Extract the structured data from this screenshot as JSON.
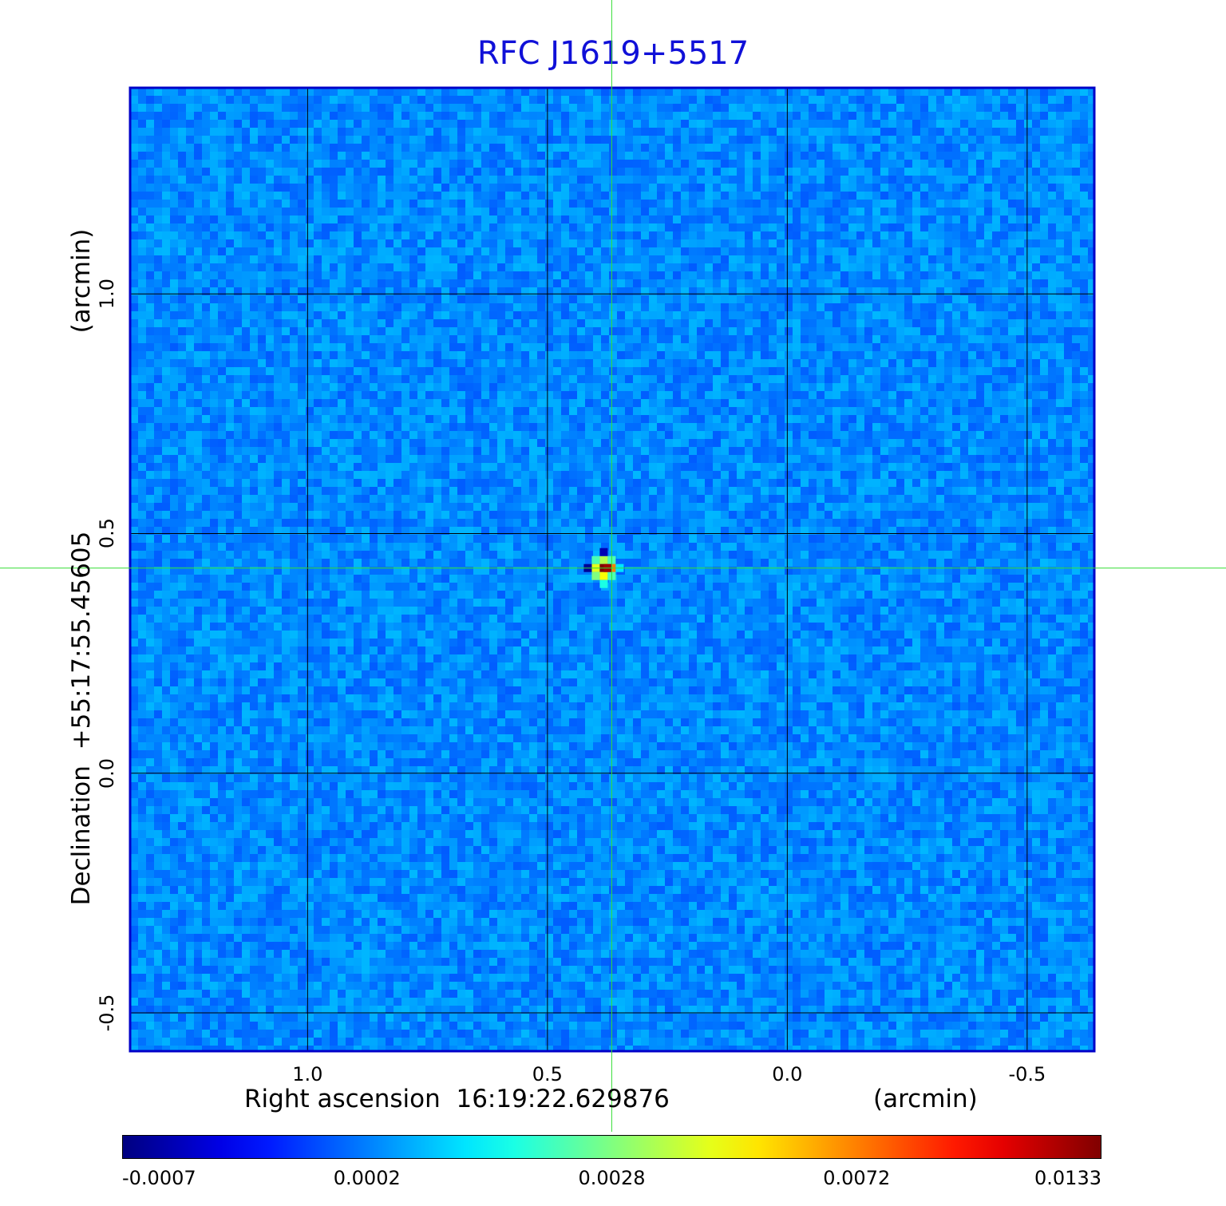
{
  "chart_data": {
    "type": "heatmap",
    "title": "RFC J1619+5517",
    "xlabel": "Right ascension  16:19:22.629876",
    "xunit": "(arcmin)",
    "ylabel": "Declination  +55:17:55.45605",
    "yunit": "(arcmin)",
    "x_range": [
      1.37,
      -0.64
    ],
    "y_range": [
      -0.58,
      1.43
    ],
    "x_ticks": [
      {
        "value": 1.0,
        "label": "1.0"
      },
      {
        "value": 0.5,
        "label": "0.5"
      },
      {
        "value": 0.0,
        "label": "0.0"
      },
      {
        "value": -0.5,
        "label": "-0.5"
      }
    ],
    "y_ticks": [
      {
        "value": 1.0,
        "label": "1.0"
      },
      {
        "value": 0.5,
        "label": "0.5"
      },
      {
        "value": 0.0,
        "label": "0.0"
      },
      {
        "value": -0.5,
        "label": "-0.5"
      }
    ],
    "grid": true,
    "crosshair": {
      "x": 0.366,
      "y": 0.428,
      "color": "#33dd33"
    },
    "source_peak": {
      "x": 0.366,
      "y": 0.428,
      "value": 0.0133
    },
    "colormap": "jet",
    "colorbar_ticks": [
      {
        "label": "-0.0007",
        "fraction": 0.0
      },
      {
        "label": "0.0002",
        "fraction": 0.25
      },
      {
        "label": "0.0028",
        "fraction": 0.5
      },
      {
        "label": "0.0072",
        "fraction": 0.75
      },
      {
        "label": "0.0133",
        "fraction": 1.0
      }
    ],
    "colors": {
      "frame": "#0000c8",
      "title": "#1010d8",
      "grid": "#000000",
      "background_map": "#1a86f0"
    }
  }
}
